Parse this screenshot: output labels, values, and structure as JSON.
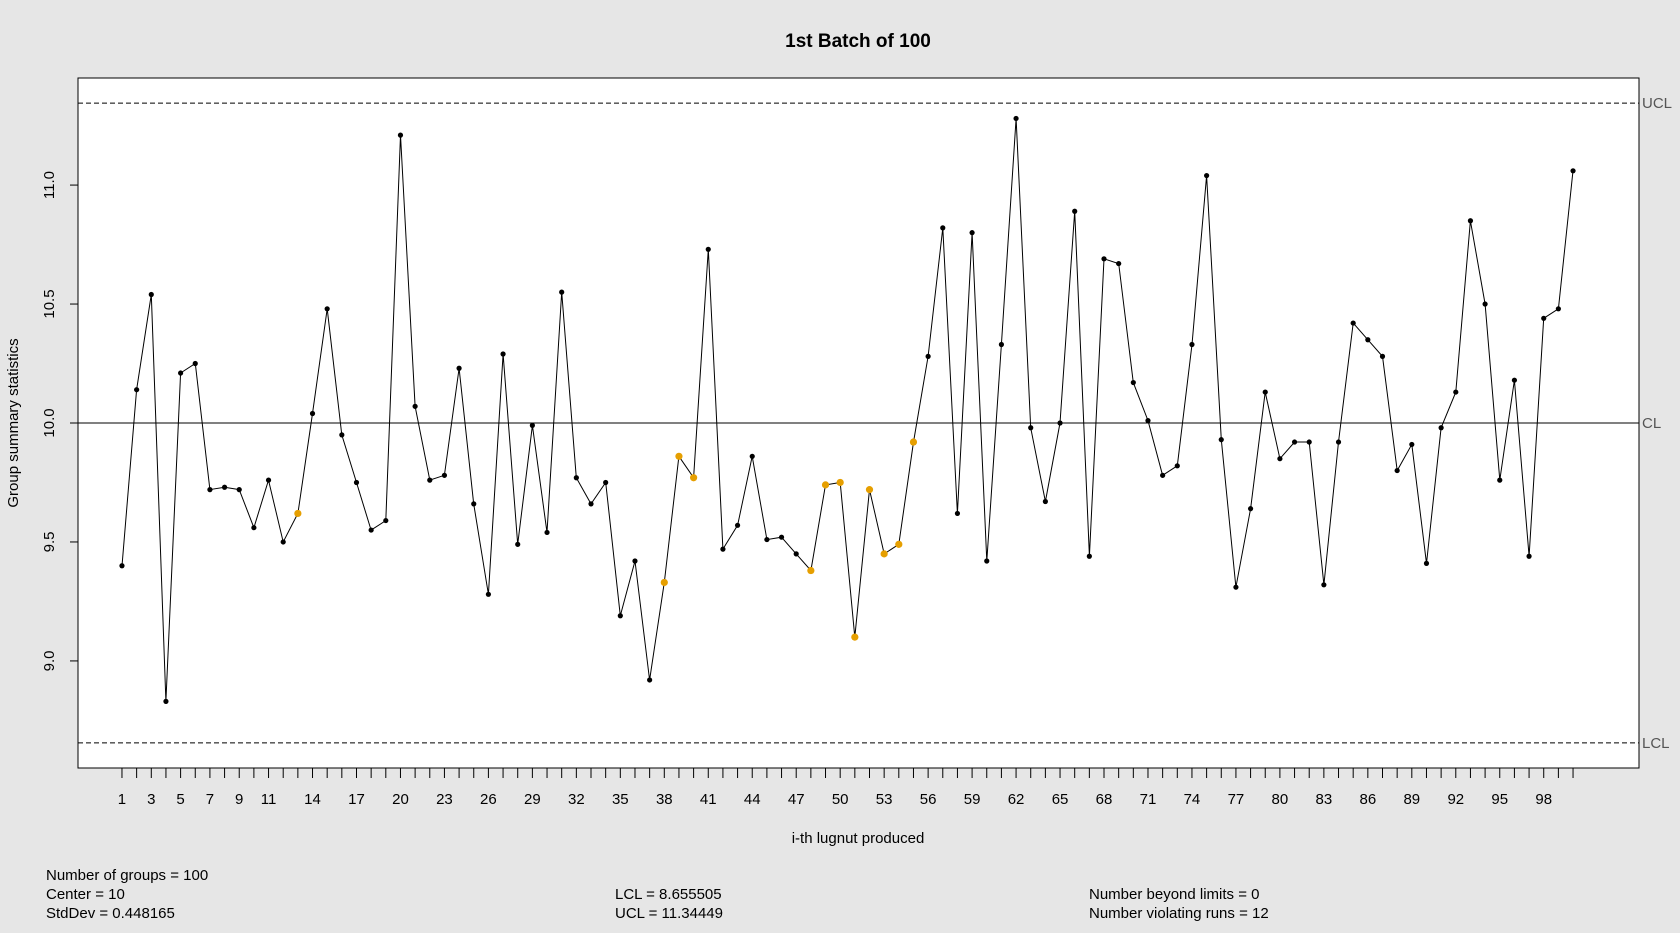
{
  "chart_data": {
    "type": "line",
    "title": "1st Batch of 100",
    "xlabel": "i-th lugnut produced",
    "ylabel": "Group summary statistics",
    "x": [
      1,
      2,
      3,
      4,
      5,
      6,
      7,
      8,
      9,
      10,
      11,
      12,
      13,
      14,
      15,
      16,
      17,
      18,
      19,
      20,
      21,
      22,
      23,
      24,
      25,
      26,
      27,
      28,
      29,
      30,
      31,
      32,
      33,
      34,
      35,
      36,
      37,
      38,
      39,
      40,
      41,
      42,
      43,
      44,
      45,
      46,
      47,
      48,
      49,
      50,
      51,
      52,
      53,
      54,
      55,
      56,
      57,
      58,
      59,
      60,
      61,
      62,
      63,
      64,
      65,
      66,
      67,
      68,
      69,
      70,
      71,
      72,
      73,
      74,
      75,
      76,
      77,
      78,
      79,
      80,
      81,
      82,
      83,
      84,
      85,
      86,
      87,
      88,
      89,
      90,
      91,
      92,
      93,
      94,
      95,
      96,
      97,
      98,
      99,
      100
    ],
    "values": [
      9.4,
      10.14,
      10.54,
      8.83,
      10.21,
      10.25,
      9.72,
      9.73,
      9.72,
      9.56,
      9.76,
      9.5,
      9.62,
      10.04,
      10.48,
      9.95,
      9.75,
      9.55,
      9.59,
      11.21,
      10.07,
      9.76,
      9.78,
      10.23,
      9.66,
      9.28,
      10.29,
      9.49,
      9.99,
      9.54,
      10.55,
      9.77,
      9.66,
      9.75,
      9.19,
      9.42,
      8.92,
      9.33,
      9.86,
      9.77,
      10.73,
      9.47,
      9.57,
      9.86,
      9.51,
      9.52,
      9.45,
      9.38,
      9.74,
      9.75,
      9.1,
      9.72,
      9.45,
      9.49,
      9.92,
      10.28,
      10.82,
      9.62,
      10.8,
      9.42,
      10.33,
      11.28,
      9.98,
      9.67,
      10.0,
      10.89,
      9.44,
      10.69,
      10.67,
      10.17,
      10.01,
      9.78,
      9.82,
      10.33,
      11.04,
      9.93,
      9.31,
      9.64,
      10.13,
      9.85,
      9.92,
      9.92,
      9.32,
      9.92,
      10.42,
      10.35,
      10.28,
      9.8,
      9.91,
      9.41,
      9.98,
      10.13,
      10.85,
      10.5,
      9.76,
      10.18,
      9.44,
      10.44,
      10.48,
      11.06
    ],
    "violating_points": [
      13,
      38,
      39,
      40,
      48,
      49,
      50,
      51,
      52,
      53,
      54,
      55
    ],
    "xticks": [
      1,
      3,
      5,
      7,
      9,
      11,
      14,
      17,
      20,
      23,
      26,
      29,
      32,
      35,
      38,
      41,
      44,
      47,
      50,
      53,
      56,
      59,
      62,
      65,
      68,
      71,
      74,
      77,
      80,
      83,
      86,
      89,
      92,
      95,
      98
    ],
    "yticks": [
      "9.0",
      "9.5",
      "10.0",
      "10.5",
      "11.0"
    ],
    "ylim": [
      8.55,
      11.45
    ],
    "xlim": [
      -2.0,
      104.5
    ],
    "center": 10,
    "lcl": 8.655505,
    "ucl": 11.34449,
    "limit_labels": {
      "ucl": "UCL",
      "cl": "CL",
      "lcl": "LCL"
    },
    "colors": {
      "point": "#000000",
      "violating": "#e69f00",
      "line": "#000000",
      "background": "#e6e6e6",
      "panel": "#ffffff"
    }
  },
  "stats": {
    "groups": "Number of groups = 100",
    "center": "Center = 10",
    "stddev": "StdDev = 0.448165",
    "lcl": "LCL = 8.655505",
    "ucl": "UCL = 11.34449",
    "beyond": "Number beyond limits = 0",
    "violating": "Number violating runs = 12"
  }
}
